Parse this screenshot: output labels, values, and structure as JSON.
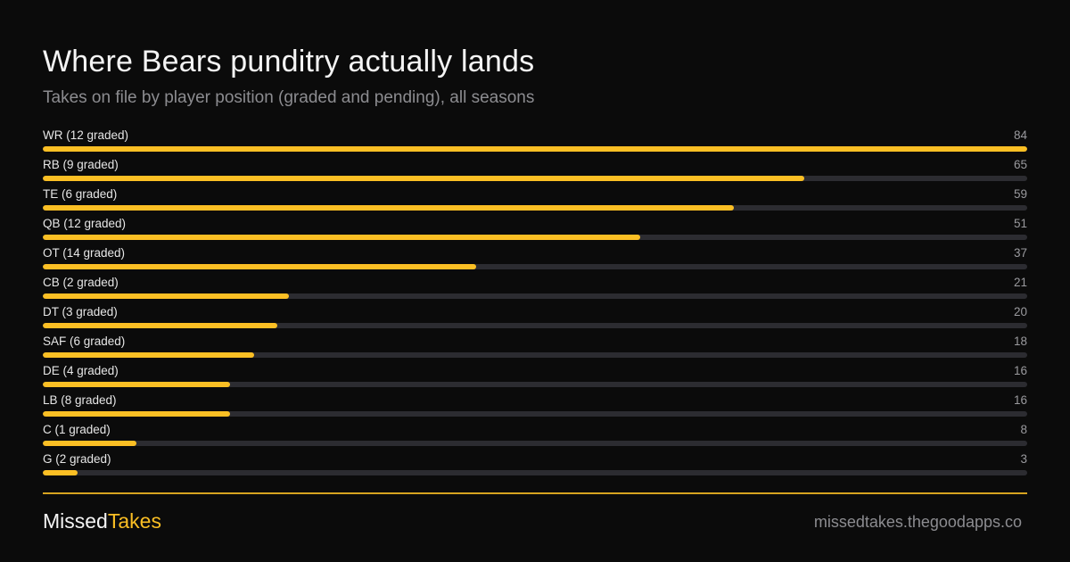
{
  "header": {
    "title": "Where Bears punditry actually lands",
    "subtitle": "Takes on file by player position (graded and pending), all seasons"
  },
  "footer": {
    "brand_part1": "Missed",
    "brand_part2": "Takes",
    "site": "missedtakes.thegoodapps.co"
  },
  "colors": {
    "background": "#0b0b0b",
    "bar_fill": "#fbbf24",
    "track": "#2c2c31",
    "accent": "#fbbf24"
  },
  "chart_data": {
    "type": "bar",
    "orientation": "horizontal",
    "title": "Where Bears punditry actually lands",
    "subtitle": "Takes on file by player position (graded and pending), all seasons",
    "categories": [
      "WR (12 graded)",
      "RB (9 graded)",
      "TE (6 graded)",
      "QB (12 graded)",
      "OT (14 graded)",
      "CB (2 graded)",
      "DT (3 graded)",
      "SAF (6 graded)",
      "DE (4 graded)",
      "LB (8 graded)",
      "C (1 graded)",
      "G (2 graded)"
    ],
    "values": [
      84,
      65,
      59,
      51,
      37,
      21,
      20,
      18,
      16,
      16,
      8,
      3
    ],
    "xlim": [
      0,
      84
    ],
    "grid": false,
    "legend": "none"
  }
}
